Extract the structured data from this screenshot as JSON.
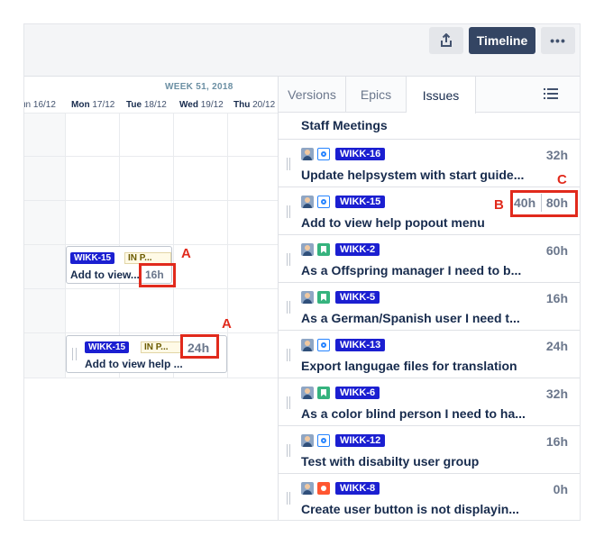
{
  "toolbar": {
    "timeline_label": "Timeline",
    "more_label": "•••",
    "share_icon": "share-icon"
  },
  "calendar": {
    "week_label": "WEEK 51, 2018",
    "days": [
      {
        "name": "un",
        "date": "16/12"
      },
      {
        "name": "Mon",
        "date": "17/12"
      },
      {
        "name": "Tue",
        "date": "18/12"
      },
      {
        "name": "Wed",
        "date": "19/12"
      },
      {
        "name": "Thu",
        "date": "20/12"
      }
    ],
    "bars": [
      {
        "key": "WIKK-15",
        "status": "IN P...",
        "title": "Add to view...",
        "hours": "16h",
        "callout": "A"
      },
      {
        "key": "WIKK-15",
        "status": "IN P...",
        "title": "Add to view help ...",
        "hours": "24h",
        "callout": "A"
      }
    ]
  },
  "panel": {
    "tabs": [
      {
        "label": "Versions",
        "active": false
      },
      {
        "label": "Epics",
        "active": false
      },
      {
        "label": "Issues",
        "active": true
      }
    ],
    "partial_title": "Staff Meetings",
    "issues": [
      {
        "key": "WIKK-16",
        "type": "task",
        "title": "Update helpsystem with start guide...",
        "hours": "32h"
      },
      {
        "key": "WIKK-15",
        "type": "task",
        "title": "Add to view help popout menu",
        "hours": "80h",
        "remaining": "40h"
      },
      {
        "key": "WIKK-2",
        "type": "story",
        "title": "As a Offspring manager I need to b...",
        "hours": "60h"
      },
      {
        "key": "WIKK-5",
        "type": "story",
        "title": "As a German/Spanish user I need t...",
        "hours": "16h"
      },
      {
        "key": "WIKK-13",
        "type": "task",
        "title": "Export langugae files for translation",
        "hours": "24h"
      },
      {
        "key": "WIKK-6",
        "type": "story",
        "title": "As a color blind person I need to ha...",
        "hours": "32h"
      },
      {
        "key": "WIKK-12",
        "type": "task",
        "title": "Test with disabilty user group",
        "hours": "16h"
      },
      {
        "key": "WIKK-8",
        "type": "bug",
        "title": "Create user button is not displayin...",
        "hours": "0h"
      }
    ]
  },
  "callouts": {
    "a": "A",
    "b": "B",
    "c": "C"
  }
}
